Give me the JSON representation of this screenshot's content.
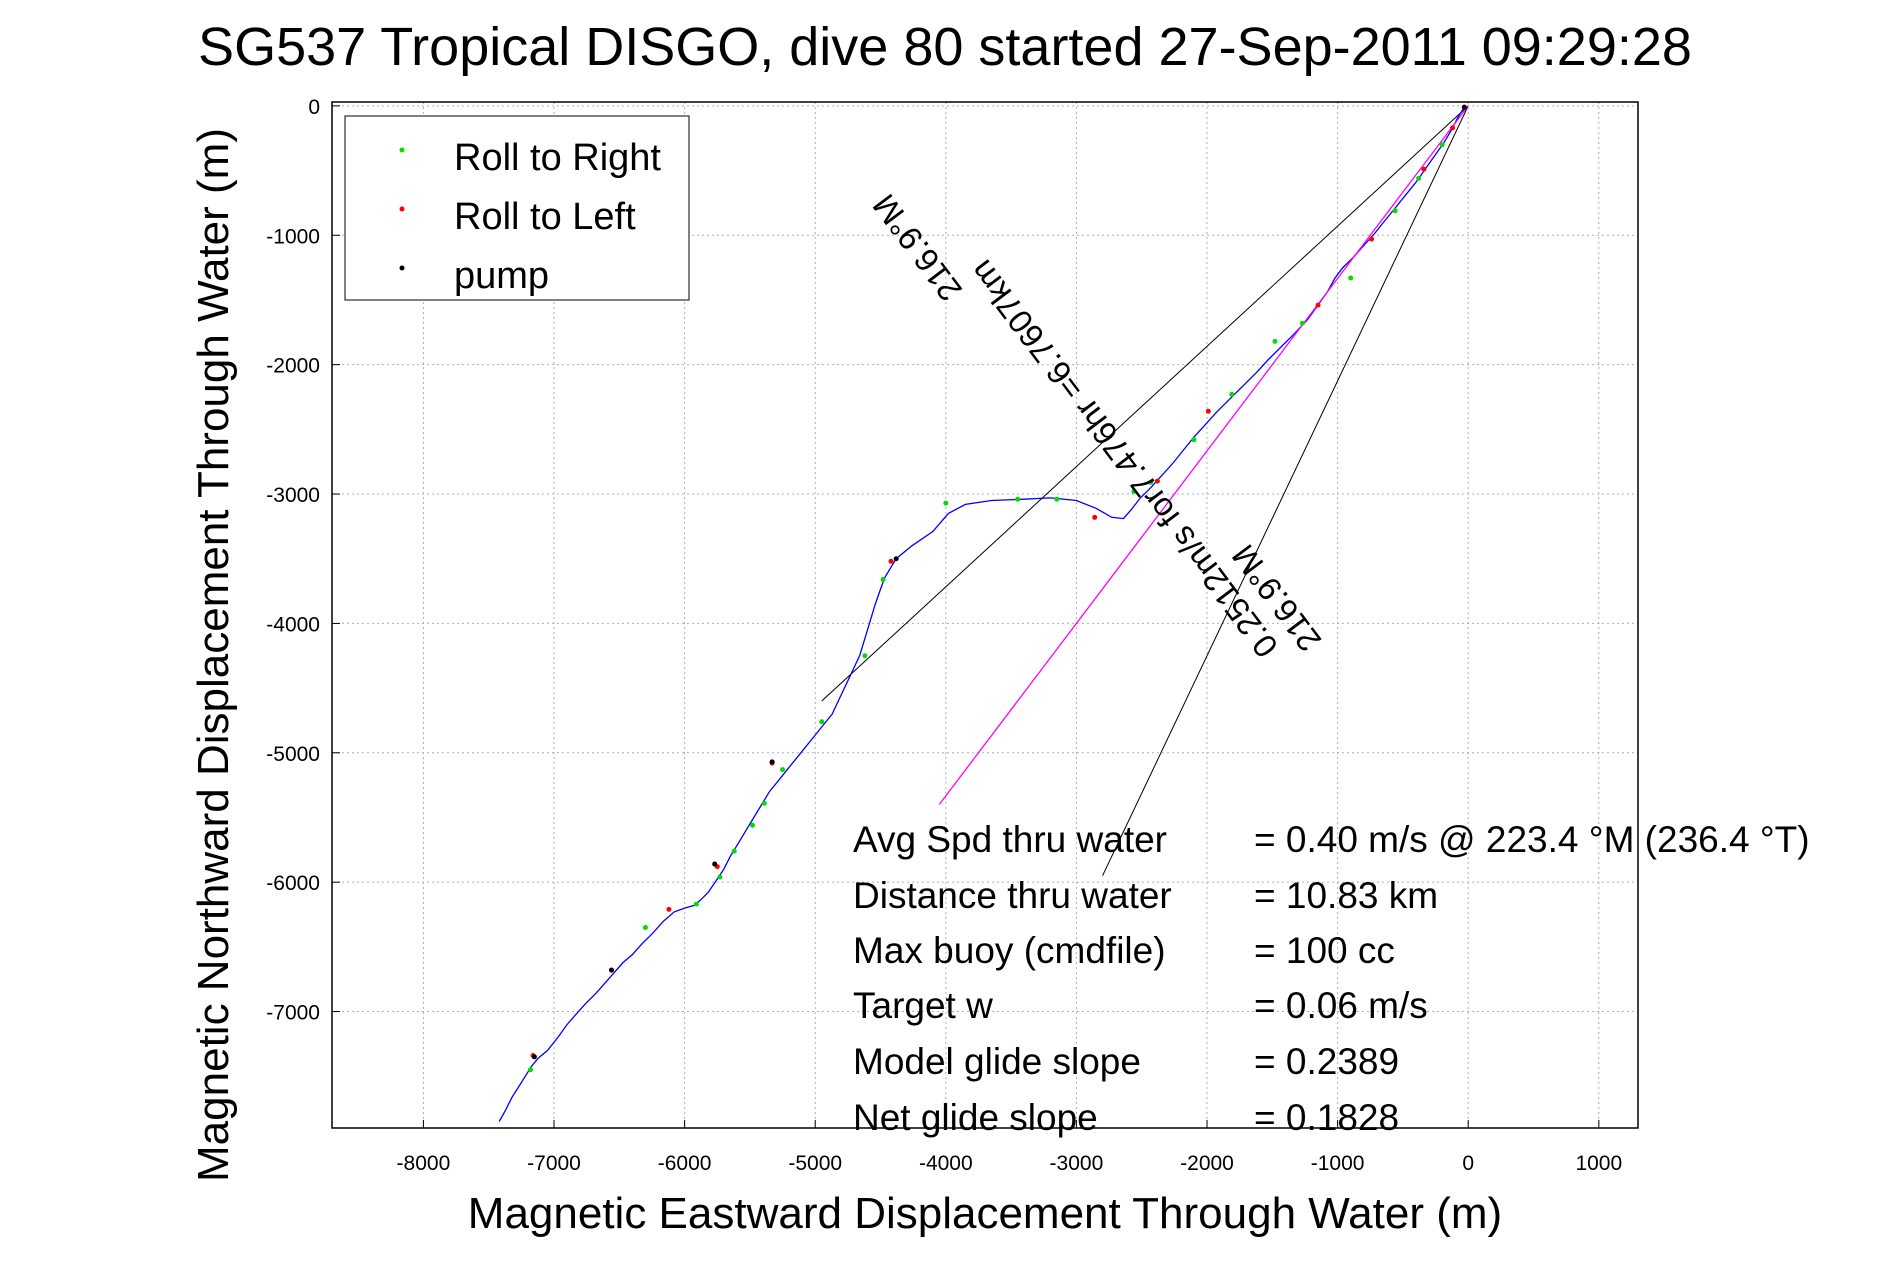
{
  "chart_data": {
    "type": "line",
    "title": "SG537 Tropical DISGO, dive 80 started 27-Sep-2011 09:29:28",
    "xlabel": "Magnetic Eastward Displacement Through Water (m)",
    "ylabel": "Magnetic Northward Displacement Through Water (m)",
    "xlim": [
      -8700,
      1300
    ],
    "ylim": [
      -7900,
      30
    ],
    "xticks": [
      -8000,
      -7000,
      -6000,
      -5000,
      -4000,
      -3000,
      -2000,
      -1000,
      0,
      1000
    ],
    "yticks": [
      0,
      -1000,
      -2000,
      -3000,
      -4000,
      -5000,
      -6000,
      -7000
    ],
    "xtick_labels": [
      "-8000",
      "-7000",
      "-6000",
      "-5000",
      "-4000",
      "-3000",
      "-2000",
      "-1000",
      "0",
      "1000"
    ],
    "ytick_labels": [
      "0",
      "-1000",
      "-2000",
      "-3000",
      "-4000",
      "-5000",
      "-6000",
      "-7000"
    ],
    "grid": true,
    "legend_position": "top-left",
    "legend": [
      {
        "label": "Roll to Right",
        "color": "#00dd00"
      },
      {
        "label": "Roll to Left",
        "color": "#ff0000"
      },
      {
        "label": "pump",
        "color": "#000000"
      }
    ],
    "series": [
      {
        "role": "track",
        "color": "#0000ff",
        "x": [
          -30,
          -80,
          -130,
          -190,
          -260,
          -330,
          -400,
          -480,
          -560,
          -640,
          -720,
          -800,
          -880,
          -960,
          -1020,
          -1080,
          -1150,
          -1230,
          -1330,
          -1430,
          -1530,
          -1620,
          -1720,
          -1820,
          -1920,
          -2010,
          -2100,
          -2180,
          -2260,
          -2340,
          -2430,
          -2510,
          -2580,
          -2640,
          -2730,
          -2850,
          -3000,
          -3200,
          -3400,
          -3650,
          -3850,
          -3980,
          -4100,
          -4260,
          -4380,
          -4470,
          -4540,
          -4600,
          -4660,
          -4730,
          -4800,
          -4870,
          -4950,
          -5030,
          -5110,
          -5190,
          -5270,
          -5350,
          -5410,
          -5470,
          -5530,
          -5590,
          -5650,
          -5700,
          -5760,
          -5820,
          -5880,
          -5930,
          -6000,
          -6080,
          -6160,
          -6250,
          -6330,
          -6400,
          -6470,
          -6540,
          -6610,
          -6680,
          -6760,
          -6830,
          -6900,
          -6970,
          -7050,
          -7120,
          -7170,
          -7220,
          -7270,
          -7320,
          -7370,
          -7420
        ],
        "y": [
          -10,
          -90,
          -190,
          -290,
          -390,
          -490,
          -590,
          -690,
          -790,
          -890,
          -990,
          -1080,
          -1170,
          -1250,
          -1330,
          -1440,
          -1540,
          -1650,
          -1760,
          -1860,
          -1960,
          -2060,
          -2160,
          -2260,
          -2360,
          -2460,
          -2560,
          -2660,
          -2760,
          -2850,
          -2950,
          -3030,
          -3120,
          -3190,
          -3180,
          -3110,
          -3050,
          -3030,
          -3040,
          -3050,
          -3080,
          -3150,
          -3290,
          -3400,
          -3500,
          -3650,
          -3850,
          -4050,
          -4250,
          -4400,
          -4550,
          -4700,
          -4800,
          -4900,
          -5000,
          -5100,
          -5200,
          -5300,
          -5400,
          -5500,
          -5600,
          -5700,
          -5800,
          -5900,
          -5990,
          -6080,
          -6140,
          -6180,
          -6200,
          -6230,
          -6300,
          -6400,
          -6480,
          -6560,
          -6620,
          -6700,
          -6780,
          -6860,
          -6940,
          -7020,
          -7100,
          -7200,
          -7300,
          -7360,
          -7420,
          -7500,
          -7580,
          -7660,
          -7760,
          -7850
        ]
      },
      {
        "role": "avg-velocity",
        "color": "#ff00ff",
        "x": [
          0,
          -4050
        ],
        "y": [
          0,
          -5400
        ]
      }
    ],
    "markers": {
      "roll_to_right": {
        "x": [
          -200,
          -380,
          -560,
          -900,
          -1270,
          -1480,
          -1810,
          -2100,
          -2430,
          -2560,
          -3150,
          -3450,
          -4000,
          -4480,
          -4620,
          -4950,
          -5250,
          -5390,
          -5480,
          -5620,
          -5730,
          -5910,
          -6300,
          -7180
        ],
        "y": [
          -300,
          -560,
          -810,
          -1330,
          -1680,
          -1820,
          -2230,
          -2580,
          -2910,
          -2980,
          -3040,
          -3040,
          -3070,
          -3660,
          -4250,
          -4760,
          -5130,
          -5390,
          -5560,
          -5760,
          -5960,
          -6170,
          -6350,
          -7450
        ]
      },
      "roll_to_left": {
        "x": [
          -120,
          -340,
          -740,
          -1150,
          -1990,
          -2380,
          -2860,
          -4420,
          -5330,
          -5750,
          -6120,
          -6560,
          -7160
        ],
        "y": [
          -170,
          -490,
          -1030,
          -1540,
          -2360,
          -2900,
          -3180,
          -3520,
          -5080,
          -5880,
          -6210,
          -6680,
          -7340
        ]
      },
      "pump": {
        "x": [
          -30,
          -4380,
          -5330,
          -5770,
          -6560,
          -7150
        ],
        "y": [
          -10,
          -3500,
          -5070,
          -5860,
          -6680,
          -7350
        ]
      }
    },
    "annotation": {
      "line1": "0.2512m/s for7.476hr =6.7607km",
      "line2_top": "216.9°M",
      "line2_bottom": "216.9°M",
      "cone_edges": [
        {
          "x": [
            0,
            -4950
          ],
          "y": [
            0,
            -4600
          ]
        },
        {
          "x": [
            0,
            -2800
          ],
          "y": [
            0,
            -5950
          ]
        }
      ]
    },
    "stats": [
      {
        "label": "Avg Spd thru water",
        "value": "=  0.40 m/s @ 223.4 °M (236.4 °T)"
      },
      {
        "label": "Distance thru water",
        "value": "= 10.83 km"
      },
      {
        "label": "Max buoy (cmdfile)",
        "value": "= 100 cc"
      },
      {
        "label": "Target w",
        "value": "= 0.06 m/s"
      },
      {
        "label": "Model glide slope",
        "value": "= 0.2389"
      },
      {
        "label": "Net glide slope",
        "value": "= 0.1828"
      }
    ]
  }
}
